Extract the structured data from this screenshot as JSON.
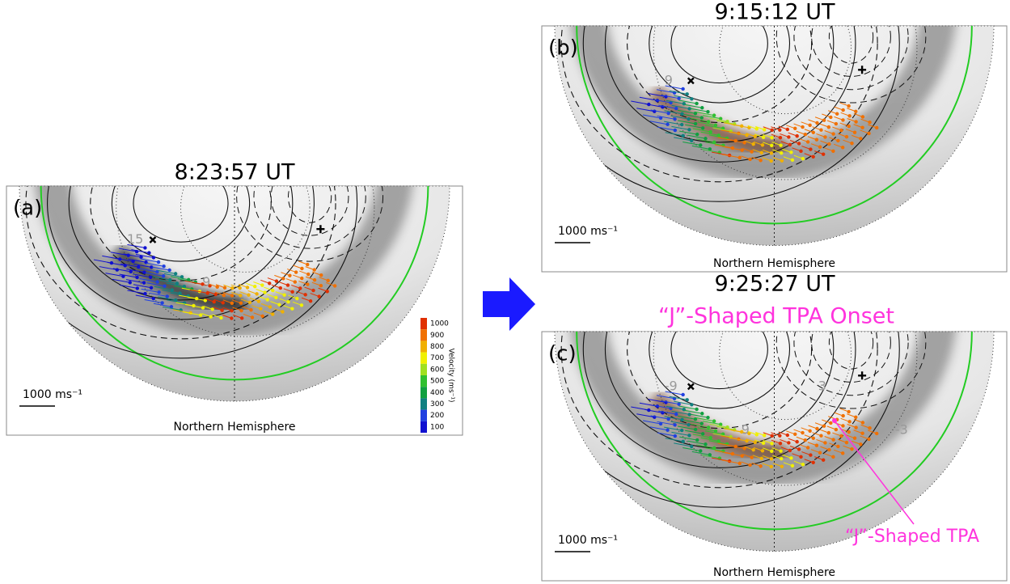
{
  "panels": [
    {
      "title": "8:23:57 UT",
      "label": "(a)",
      "scale_label": "1000 ms⁻¹",
      "hemisphere": "Northern Hemisphere",
      "contour_labels": [
        "15",
        "9"
      ]
    },
    {
      "title": "9:15:12 UT",
      "label": "(b)",
      "scale_label": "1000 ms⁻¹",
      "hemisphere": "Northern Hemisphere",
      "contour_labels": [
        "9"
      ]
    },
    {
      "title": "9:25:27 UT",
      "label": "(c)",
      "scale_label": "1000 ms⁻¹",
      "hemisphere": "Northern Hemisphere",
      "contour_labels": [
        "-9",
        "9",
        "3",
        "-3"
      ]
    }
  ],
  "colorbar": {
    "title": "Velocity (ms⁻¹)",
    "ticks": [
      1000,
      900,
      800,
      700,
      600,
      500,
      400,
      300,
      200,
      100
    ]
  },
  "subtitle": "“J”-Shaped TPA Onset",
  "annotation": "“J”-Shaped TPA"
}
